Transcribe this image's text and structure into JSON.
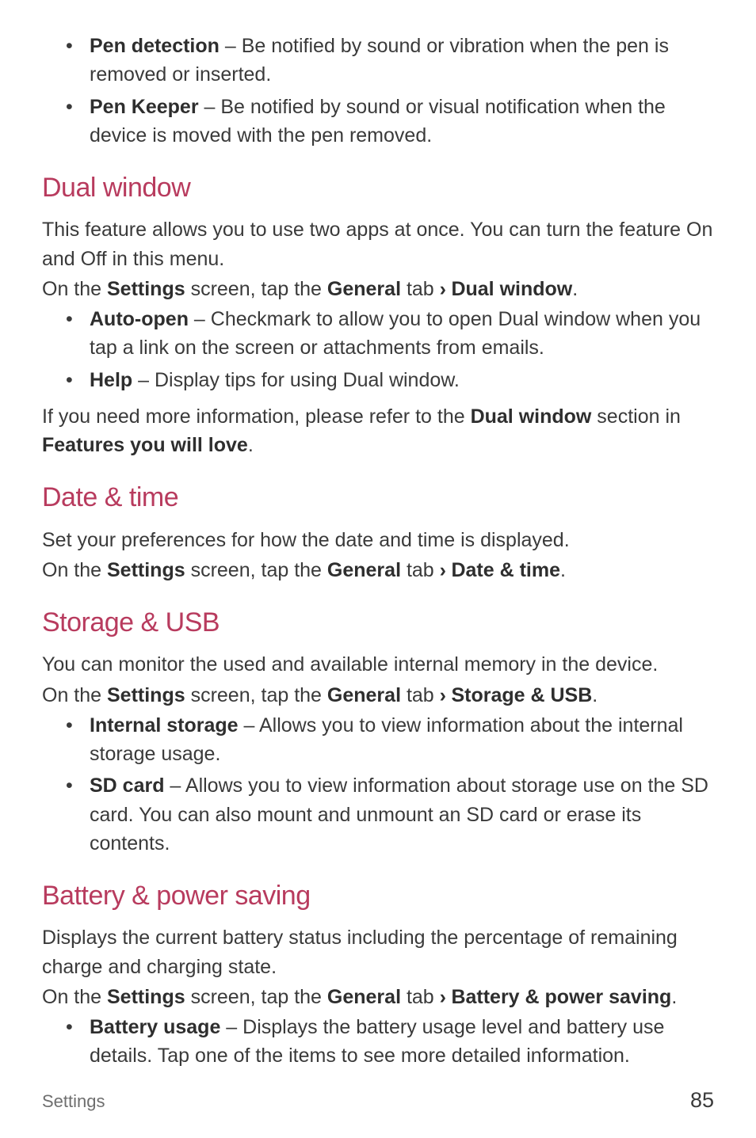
{
  "top_bullets": [
    {
      "term": "Pen detection",
      "desc": " – Be notified by sound or vibration when the pen is removed or inserted."
    },
    {
      "term": "Pen Keeper",
      "desc": " – Be notified by sound or visual notification when the device is moved with the pen removed."
    }
  ],
  "dual_window": {
    "heading": "Dual window",
    "intro": "This feature allows you to use two apps at once. You can turn the feature On and Off in this menu.",
    "nav_prefix": "On the ",
    "nav_settings": "Settings",
    "nav_mid": " screen, tap the ",
    "nav_general": "General",
    "nav_tab": " tab ",
    "nav_chev": "›",
    "nav_target": " Dual window",
    "nav_end": ".",
    "bullets": [
      {
        "term": "Auto-open",
        "desc": " – Checkmark to allow you to open Dual window when you tap a link on the screen or attachments from emails."
      },
      {
        "term": "Help",
        "desc": " – Display tips for using Dual window."
      }
    ],
    "note_prefix": "If you need more information, please refer to the ",
    "note_bold1": "Dual window",
    "note_mid": " section in ",
    "note_bold2": "Features you will love",
    "note_end": "."
  },
  "date_time": {
    "heading": "Date & time",
    "intro": "Set your preferences for how the date and time is displayed.",
    "nav_prefix": "On the ",
    "nav_settings": "Settings",
    "nav_mid": " screen, tap the ",
    "nav_general": "General",
    "nav_tab": " tab ",
    "nav_chev": "›",
    "nav_target": " Date & time",
    "nav_end": "."
  },
  "storage": {
    "heading": "Storage & USB",
    "intro": "You can monitor the used and available internal memory in the device.",
    "nav_prefix": "On the ",
    "nav_settings": "Settings",
    "nav_mid": " screen, tap the ",
    "nav_general": "General",
    "nav_tab": " tab ",
    "nav_chev": "›",
    "nav_target": " Storage & USB",
    "nav_end": ".",
    "bullets": [
      {
        "term": "Internal storage",
        "desc": " – Allows you to view information about the internal storage usage."
      },
      {
        "term": "SD card",
        "desc": " – Allows you to view information about storage use on the SD card. You can also mount and unmount an SD card or erase its contents."
      }
    ]
  },
  "battery": {
    "heading": "Battery & power saving",
    "intro": "Displays the current battery status including the percentage of remaining charge and charging state.",
    "nav_prefix": "On the ",
    "nav_settings": "Settings",
    "nav_mid": " screen, tap the ",
    "nav_general": "General",
    "nav_tab": " tab ",
    "nav_chev": "›",
    "nav_target": " Battery & power saving",
    "nav_end": ".",
    "bullets": [
      {
        "term": "Battery usage",
        "desc": " – Displays the battery usage level and battery use details. Tap one of the items to see more detailed information."
      }
    ]
  },
  "footer": {
    "section": "Settings",
    "page": "85"
  }
}
